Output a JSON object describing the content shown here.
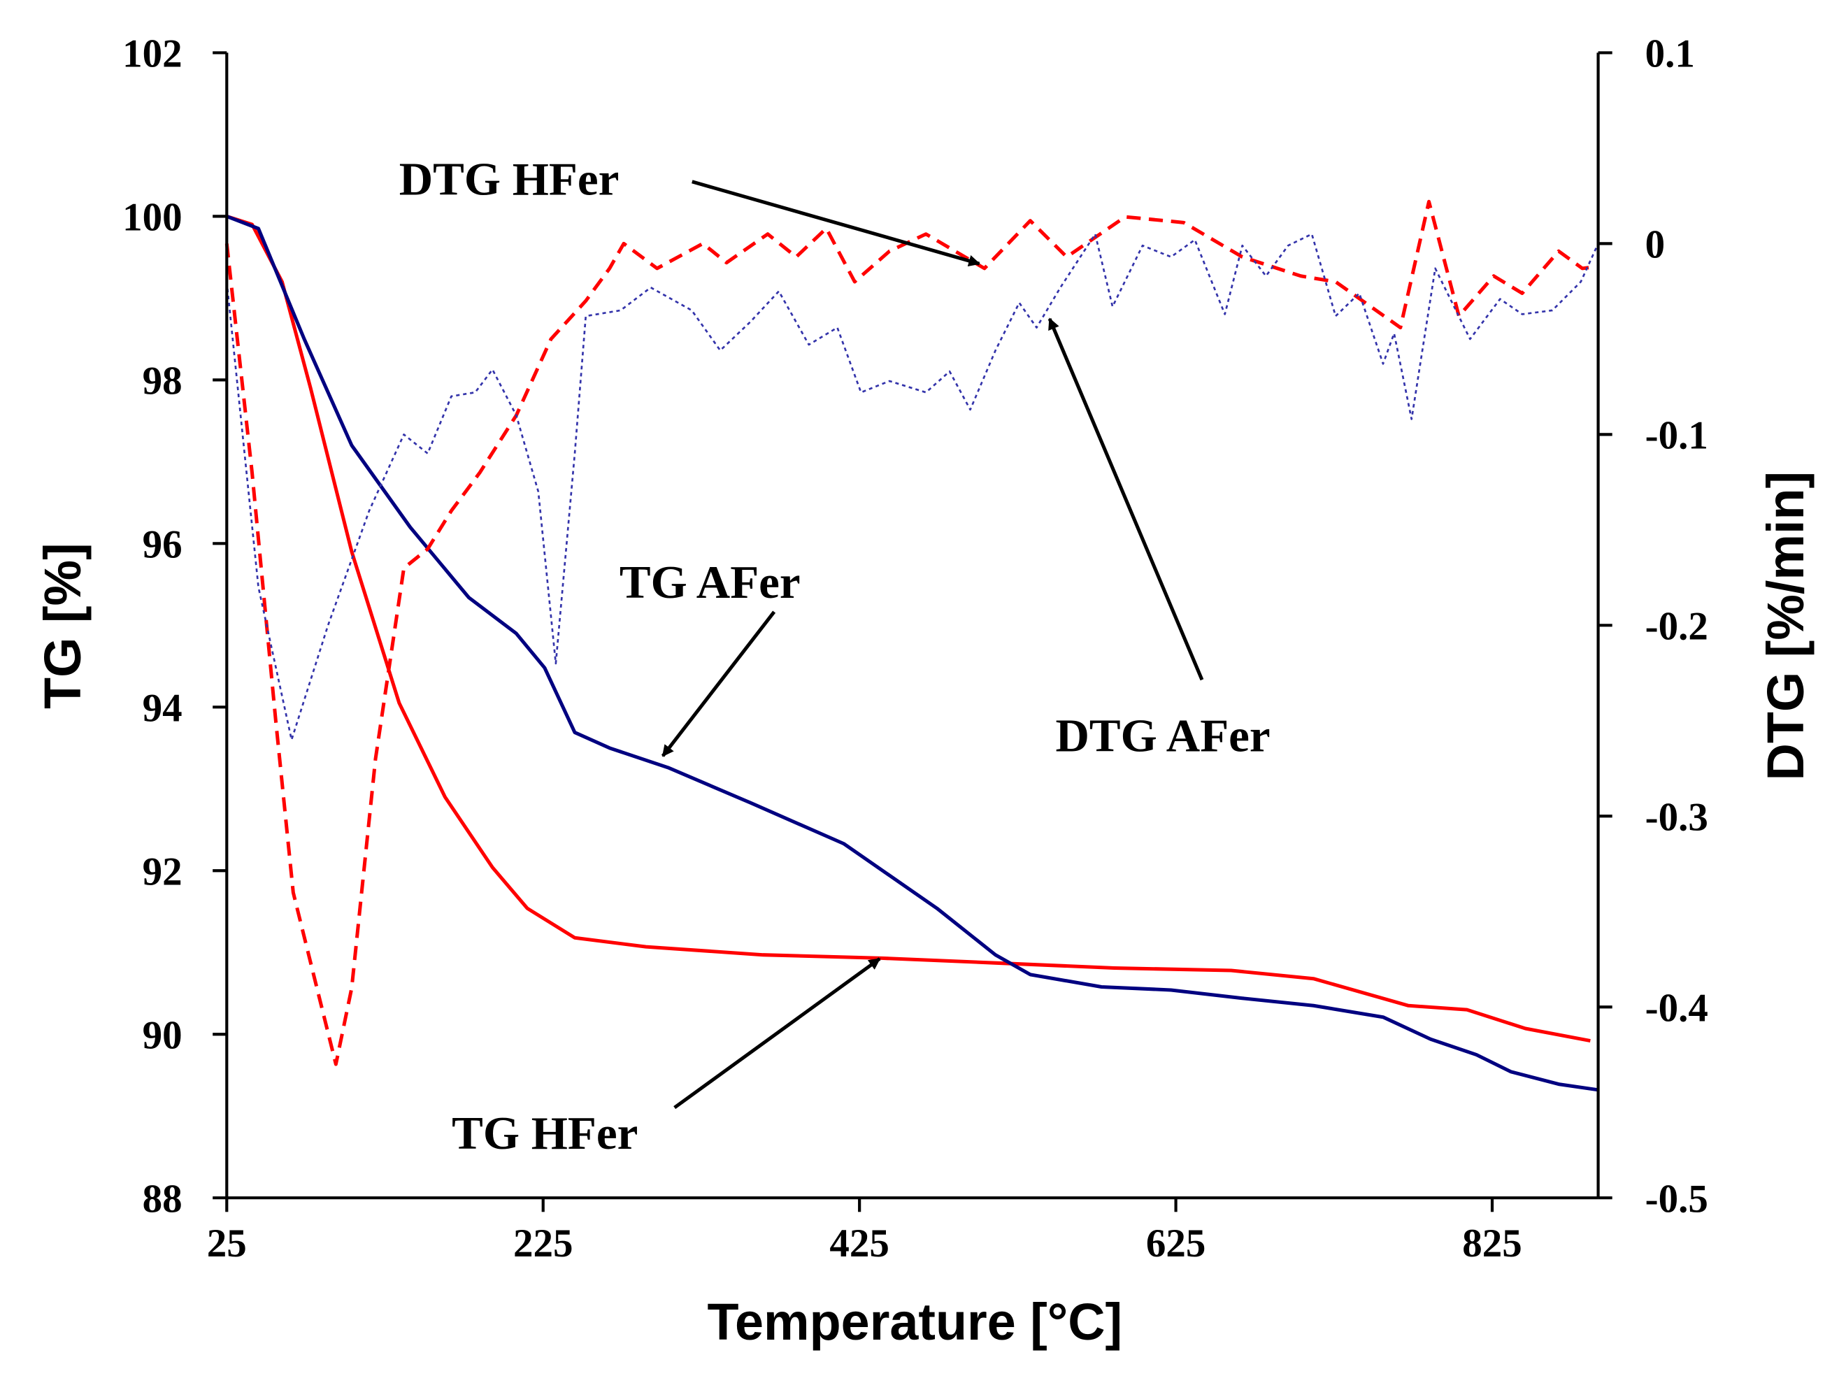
{
  "chart_data": {
    "type": "line",
    "xlabel": "Temperature [°C]",
    "ylabel": "TG [%]",
    "y2label": "DTG [%/min]",
    "xlim": [
      25,
      892
    ],
    "ylim": [
      88,
      102
    ],
    "y2lim": [
      -0.5,
      0.1
    ],
    "xticks": [
      25,
      225,
      425,
      625,
      825
    ],
    "yticks": [
      88,
      90,
      92,
      94,
      96,
      98,
      100,
      102
    ],
    "y2ticks": [
      "0.1",
      "0",
      "-0.1",
      "-0.2",
      "-0.3",
      "-0.4",
      "-0.5"
    ],
    "grid": false,
    "series": [
      {
        "name": "TG HFer",
        "axis": "left",
        "color": "#ff0000",
        "style": "solid",
        "x": [
          25,
          41,
          60,
          78,
          104,
          134,
          163,
          193,
          215,
          245,
          290,
          364,
          439,
          513,
          586,
          660,
          712,
          772,
          809,
          846,
          887
        ],
        "y": [
          100.0,
          99.9,
          99.2,
          97.9,
          95.9,
          94.05,
          92.9,
          92.04,
          91.54,
          91.18,
          91.07,
          90.97,
          90.93,
          90.87,
          90.81,
          90.78,
          90.68,
          90.35,
          90.3,
          90.07,
          89.92
        ]
      },
      {
        "name": "TG AFer",
        "axis": "left",
        "color": "#000080",
        "style": "solid",
        "x": [
          25,
          45,
          74,
          104,
          141,
          178,
          208,
          226,
          245,
          267,
          304,
          356,
          415,
          474,
          511,
          533,
          578,
          622,
          667,
          712,
          756,
          786,
          815,
          837,
          867,
          892
        ],
        "y": [
          100.0,
          99.85,
          98.5,
          97.2,
          96.2,
          95.34,
          94.9,
          94.48,
          93.69,
          93.5,
          93.26,
          92.83,
          92.33,
          91.54,
          90.97,
          90.73,
          90.58,
          90.54,
          90.44,
          90.35,
          90.21,
          89.94,
          89.75,
          89.54,
          89.39,
          89.32
        ]
      },
      {
        "name": "DTG HFer",
        "axis": "right",
        "color": "#ff0000",
        "style": "dashed",
        "x": [
          25,
          41,
          56,
          67,
          82,
          94,
          104,
          119,
          137,
          152,
          167,
          185,
          208,
          230,
          252,
          267,
          276,
          297,
          326,
          341,
          367,
          385,
          404,
          422,
          444,
          467,
          504,
          533,
          556,
          593,
          630,
          667,
          704,
          726,
          767,
          785,
          804,
          826,
          844,
          867,
          882,
          892
        ],
        "y": [
          0.0,
          -0.12,
          -0.25,
          -0.34,
          -0.39,
          -0.43,
          -0.39,
          -0.27,
          -0.17,
          -0.16,
          -0.14,
          -0.12,
          -0.09,
          -0.05,
          -0.03,
          -0.013,
          0.0,
          -0.013,
          0.0,
          -0.01,
          0.005,
          -0.007,
          0.008,
          -0.02,
          -0.004,
          0.005,
          -0.013,
          0.012,
          -0.007,
          0.014,
          0.011,
          -0.007,
          -0.017,
          -0.02,
          -0.044,
          0.022,
          -0.038,
          -0.017,
          -0.026,
          -0.004,
          -0.013,
          -0.012
        ]
      },
      {
        "name": "DTG AFer",
        "axis": "right",
        "color": "#3333aa",
        "style": "dotted",
        "x": [
          25,
          45,
          66,
          89,
          115,
          137,
          152,
          167,
          182,
          193,
          208,
          222,
          233,
          245,
          252,
          274,
          293,
          319,
          337,
          356,
          374,
          393,
          411,
          426,
          444,
          467,
          482,
          495,
          511,
          526,
          537,
          552,
          574,
          585,
          604,
          622,
          637,
          656,
          667,
          682,
          696,
          711,
          726,
          741,
          756,
          763,
          774,
          789,
          811,
          830,
          844,
          863,
          881,
          892
        ],
        "y": [
          -0.02,
          -0.18,
          -0.26,
          -0.2,
          -0.14,
          -0.1,
          -0.11,
          -0.08,
          -0.078,
          -0.066,
          -0.09,
          -0.13,
          -0.22,
          -0.11,
          -0.038,
          -0.035,
          -0.023,
          -0.035,
          -0.056,
          -0.041,
          -0.025,
          -0.053,
          -0.044,
          -0.078,
          -0.072,
          -0.078,
          -0.067,
          -0.087,
          -0.056,
          -0.031,
          -0.044,
          -0.023,
          0.005,
          -0.033,
          -0.001,
          -0.007,
          0.002,
          -0.037,
          -0.001,
          -0.017,
          -0.001,
          0.005,
          -0.038,
          -0.026,
          -0.063,
          -0.047,
          -0.092,
          -0.013,
          -0.05,
          -0.029,
          -0.037,
          -0.035,
          -0.02,
          0.0
        ]
      }
    ],
    "annotations": [
      "DTG HFer",
      "TG AFer",
      "DTG AFer",
      "TG HFer"
    ]
  }
}
